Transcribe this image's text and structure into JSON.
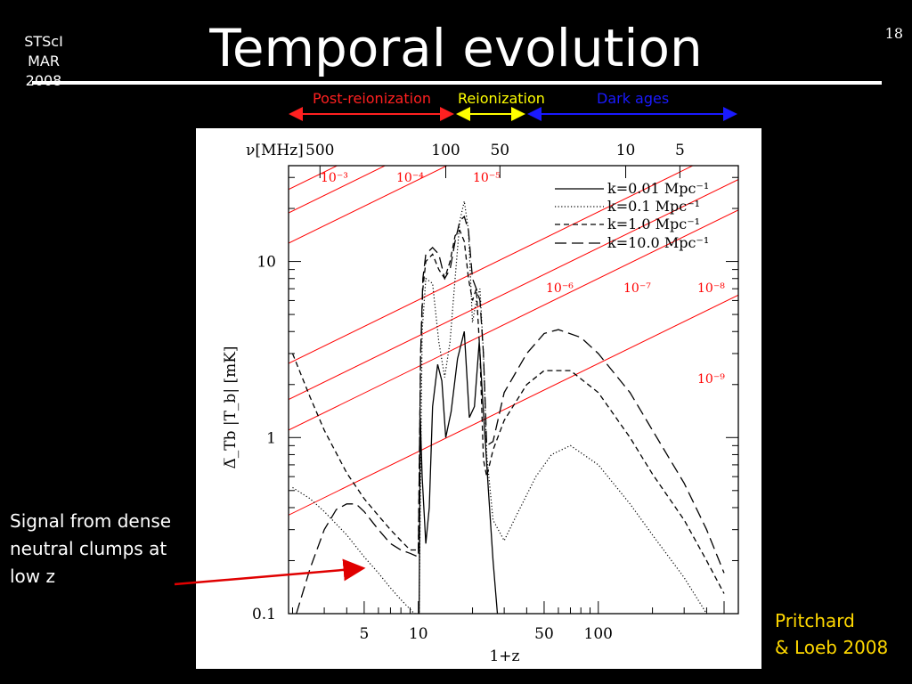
{
  "slide": {
    "org_line1": "STScI",
    "org_line2": "MAR 2008",
    "title": "Temporal evolution",
    "page_number": "18",
    "eras": [
      {
        "label": "Post-reionization",
        "color": "#ff2020"
      },
      {
        "label": "Reionization",
        "color": "#ffff00"
      },
      {
        "label": "Dark ages",
        "color": "#1a1aff"
      }
    ],
    "annotation": "Signal from dense neutral clumps at low z",
    "credit_line1": "Pritchard",
    "credit_line2": "& Loeb 2008"
  },
  "chart_data": {
    "type": "line",
    "xlabel": "1+z",
    "ylabel": "Δ̅_Tb |T_b|  [mK]",
    "top_axis_label": "ν[MHz]",
    "x_scale": "log",
    "y_scale": "log",
    "xlim": [
      1.9,
      600
    ],
    "ylim": [
      0.1,
      35
    ],
    "x_ticks": [
      5,
      10,
      50,
      100
    ],
    "y_ticks": [
      0.1,
      1,
      10
    ],
    "top_ticks": [
      "500",
      "100",
      "50",
      "10",
      "5"
    ],
    "top_tick_mhz": [
      500,
      100,
      50,
      10,
      5
    ],
    "grid": false,
    "legend_position": "top-right",
    "series": [
      {
        "name": "k=0.01 Mpc⁻¹",
        "style": "solid",
        "x": [
          10.1,
          10.25,
          10.5,
          11,
          11.5,
          12,
          12.8,
          13.5,
          14.2,
          15.2,
          16.5,
          18,
          19.2,
          20.5,
          21.8,
          23,
          24.5,
          26,
          27.5
        ],
        "y": [
          0.1,
          1.3,
          0.6,
          0.25,
          0.4,
          1.5,
          2.6,
          2.1,
          1.0,
          1.4,
          2.8,
          4.0,
          1.3,
          1.5,
          3.5,
          1.4,
          0.5,
          0.2,
          0.1
        ]
      },
      {
        "name": "k=0.1 Mpc⁻¹",
        "style": "dotted",
        "x": [
          2.0,
          2.5,
          3,
          4,
          5,
          6,
          7,
          8,
          9.5,
          10.1,
          10.5,
          11,
          12,
          13,
          14,
          15,
          16,
          17,
          18,
          19,
          20,
          21,
          22,
          23,
          24,
          26,
          30,
          35,
          45,
          55,
          70,
          100,
          150,
          200,
          300,
          400,
          500
        ],
        "y": [
          0.52,
          0.45,
          0.38,
          0.28,
          0.21,
          0.17,
          0.14,
          0.12,
          0.1,
          0.1,
          4.0,
          8.0,
          7.5,
          3.5,
          2.2,
          3.5,
          8.0,
          17.0,
          22.0,
          15.0,
          4.5,
          6.0,
          7.0,
          3.0,
          0.8,
          0.34,
          0.26,
          0.36,
          0.6,
          0.8,
          0.9,
          0.7,
          0.42,
          0.28,
          0.16,
          0.1,
          0.08
        ]
      },
      {
        "name": "k=1.0 Mpc⁻¹",
        "style": "short-dash",
        "x": [
          2.0,
          2.5,
          3,
          4,
          5,
          6,
          7,
          8,
          9,
          10,
          10.3,
          10.6,
          11,
          12,
          13,
          14,
          15,
          16,
          17,
          18,
          19,
          20,
          21,
          22,
          23,
          24,
          26,
          30,
          40,
          50,
          70,
          100,
          150,
          200,
          300,
          400,
          500
        ],
        "y": [
          3.0,
          1.7,
          1.1,
          0.63,
          0.45,
          0.36,
          0.3,
          0.26,
          0.23,
          0.23,
          3.0,
          7.0,
          10.0,
          11.0,
          9.0,
          8.0,
          10.0,
          14.0,
          15.0,
          13.0,
          8.0,
          6.0,
          7.0,
          3.0,
          0.75,
          0.6,
          0.85,
          1.25,
          2.0,
          2.4,
          2.4,
          1.8,
          1.0,
          0.62,
          0.34,
          0.2,
          0.13
        ]
      },
      {
        "name": "k=10.0 Mpc⁻¹",
        "style": "long-dash",
        "x": [
          2.1,
          2.5,
          3,
          3.5,
          4,
          4.5,
          5,
          6,
          7,
          8,
          9,
          10,
          10.3,
          10.6,
          11,
          12,
          13,
          14,
          15,
          16,
          17,
          18,
          19,
          20,
          21,
          22,
          23,
          24,
          26,
          30,
          40,
          50,
          60,
          80,
          100,
          150,
          200,
          300,
          400,
          500
        ],
        "y": [
          0.1,
          0.18,
          0.3,
          0.39,
          0.42,
          0.42,
          0.38,
          0.3,
          0.25,
          0.23,
          0.22,
          0.21,
          3.0,
          8.0,
          11.0,
          12.0,
          11.0,
          8.0,
          9.0,
          13.0,
          17.0,
          18.0,
          15.0,
          8.0,
          7.0,
          6.0,
          3.0,
          0.9,
          0.95,
          1.8,
          3.0,
          3.9,
          4.1,
          3.7,
          3.0,
          1.8,
          1.1,
          0.55,
          0.3,
          0.17
        ]
      }
    ],
    "diagonal_lines": {
      "color": "#ff0000",
      "slope_dex_per_dex": 0.5,
      "labels": [
        "10⁻³",
        "10⁻⁴",
        "10⁻⁵",
        "10⁻⁶",
        "10⁻⁷",
        "10⁻⁸",
        "10⁻⁹"
      ],
      "ref_x": [
        2.6,
        4.8,
        10.6,
        17.5,
        45,
        100,
        130
      ],
      "ref_y": [
        30,
        30,
        30,
        8,
        8,
        8,
        3.0
      ]
    }
  }
}
